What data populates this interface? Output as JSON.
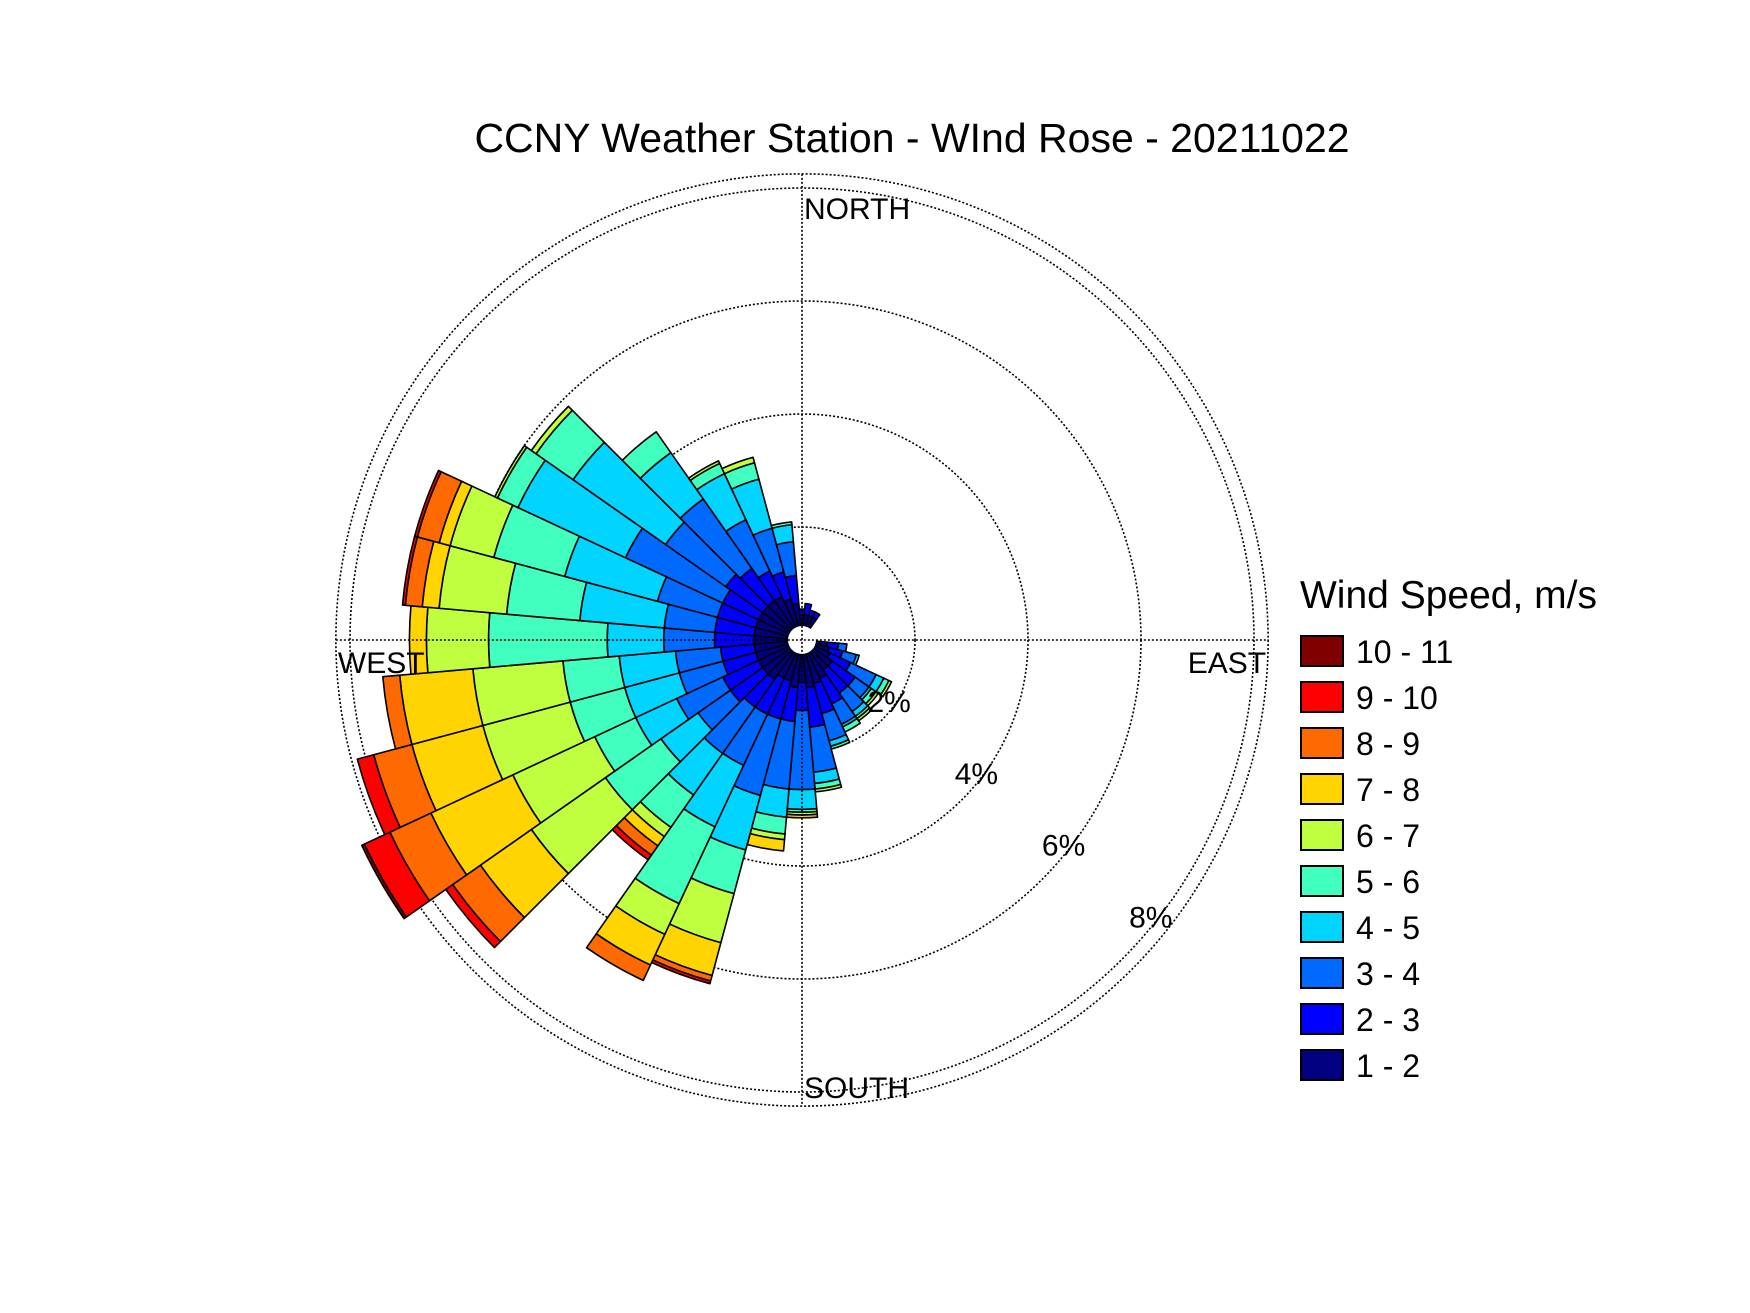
{
  "chart_data": {
    "type": "wind-rose",
    "title": "CCNY Weather Station - WInd Rose - 20211022",
    "directions": [
      "NORTH",
      "EAST",
      "SOUTH",
      "WEST"
    ],
    "radial_ticks": [
      "2%",
      "4%",
      "6%",
      "8%"
    ],
    "radial_tick_values": [
      2,
      4,
      6,
      8
    ],
    "rmax": 8.25,
    "rings": [
      2,
      4,
      6,
      8
    ],
    "grid": true,
    "legend_placement": "right",
    "legend": {
      "title": "Wind Speed, m/s",
      "bins": [
        {
          "label": "10 - 11",
          "color": "#800000"
        },
        {
          "label": "9 - 10",
          "color": "#ff0000"
        },
        {
          "label": "8 - 9",
          "color": "#ff6a00"
        },
        {
          "label": "7 - 8",
          "color": "#ffd400"
        },
        {
          "label": "6 - 7",
          "color": "#bfff40"
        },
        {
          "label": "5 - 6",
          "color": "#40ffbf"
        },
        {
          "label": "4 - 5",
          "color": "#00d4ff"
        },
        {
          "label": "3 - 4",
          "color": "#006aff"
        },
        {
          "label": "2 - 3",
          "color": "#0000ff"
        },
        {
          "label": "1 - 2",
          "color": "#000080"
        }
      ]
    },
    "sector_width_deg": 10,
    "bin_order_inner_to_outer": [
      "1 - 2",
      "2 - 3",
      "3 - 4",
      "4 - 5",
      "5 - 6",
      "6 - 7",
      "7 - 8",
      "8 - 9",
      "9 - 10",
      "10 - 11"
    ],
    "sectors": [
      {
        "dir": 0,
        "cum": [
          0.2,
          0.3
        ]
      },
      {
        "dir": 10,
        "cum": [
          0.2,
          0.4
        ]
      },
      {
        "dir": 20,
        "cum": [
          0.2,
          0.3
        ]
      },
      {
        "dir": 30,
        "cum": [
          0.2,
          0.3
        ]
      },
      {
        "dir": 100,
        "cum": [
          0.2,
          0.4,
          0.55
        ]
      },
      {
        "dir": 110,
        "cum": [
          0.25,
          0.5,
          0.75,
          0.8
        ]
      },
      {
        "dir": 120,
        "cum": [
          0.3,
          0.7,
          1.2,
          1.35,
          1.45,
          1.5
        ]
      },
      {
        "dir": 130,
        "cum": [
          0.4,
          0.9,
          1.2,
          1.25,
          1.35,
          1.4
        ]
      },
      {
        "dir": 140,
        "cum": [
          0.4,
          0.9,
          1.3,
          1.4,
          1.45,
          1.5
        ]
      },
      {
        "dir": 150,
        "cum": [
          0.5,
          1.0,
          1.4,
          1.45,
          1.55
        ]
      },
      {
        "dir": 160,
        "cum": [
          0.55,
          1.1,
          1.6,
          1.7,
          1.75
        ]
      },
      {
        "dir": 170,
        "cum": [
          0.6,
          1.3,
          2.1,
          2.3,
          2.4,
          2.45
        ]
      },
      {
        "dir": 180,
        "cum": [
          0.5,
          1.0,
          2.4,
          2.75,
          2.8,
          2.85,
          2.9
        ]
      },
      {
        "dir": 190,
        "cum": [
          0.6,
          1.2,
          2.4,
          2.9,
          3.2,
          3.3,
          3.5
        ]
      },
      {
        "dir": 200,
        "cum": [
          0.5,
          1.2,
          2.6,
          3.6,
          4.4,
          5.3,
          5.9,
          6.0,
          6.05
        ]
      },
      {
        "dir": 210,
        "cum": [
          0.5,
          1.2,
          2.2,
          3.4,
          4.9,
          5.5,
          6.1,
          6.4
        ]
      },
      {
        "dir": 220,
        "cum": [
          0.6,
          1.2,
          2.2,
          3.1,
          3.8,
          4.0,
          4.2,
          4.4,
          4.5
        ]
      },
      {
        "dir": 230,
        "cum": [
          0.6,
          1.3,
          2.0,
          2.8,
          4.0,
          5.6,
          6.7,
          7.3,
          7.45
        ]
      },
      {
        "dir": 240,
        "cum": [
          0.6,
          1.3,
          2.2,
          3.0,
          3.8,
          5.4,
          7.0,
          7.8,
          8.3,
          8.35
        ]
      },
      {
        "dir": 250,
        "cum": [
          0.6,
          1.2,
          2.0,
          3.0,
          4.0,
          5.6,
          6.9,
          7.6,
          7.9
        ]
      },
      {
        "dir": 260,
        "cum": [
          0.6,
          1.2,
          2.0,
          3.0,
          4.0,
          5.6,
          6.9,
          7.2
        ]
      },
      {
        "dir": 270,
        "cum": [
          0.6,
          1.3,
          2.2,
          3.2,
          5.3,
          6.4,
          6.7
        ]
      },
      {
        "dir": 280,
        "cum": [
          0.6,
          1.3,
          2.2,
          3.7,
          5.0,
          6.2,
          6.5,
          6.8,
          6.85
        ]
      },
      {
        "dir": 290,
        "cum": [
          0.6,
          1.3,
          2.4,
          4.1,
          5.4,
          6.2,
          6.4,
          6.8,
          6.85
        ]
      },
      {
        "dir": 300,
        "cum": [
          0.6,
          1.3,
          3.2,
          5.3,
          5.7,
          5.75
        ]
      },
      {
        "dir": 310,
        "cum": [
          0.6,
          1.4,
          2.7,
          4.7,
          5.5,
          5.6
        ]
      },
      {
        "dir": 320,
        "cum": [
          0.6,
          1.3,
          2.8,
          3.8,
          4.25
        ]
      },
      {
        "dir": 330,
        "cum": [
          0.6,
          1.1,
          2.1,
          3.0,
          3.2,
          3.25
        ]
      },
      {
        "dir": 340,
        "cum": [
          0.5,
          1.0,
          1.8,
          2.7,
          3.0,
          3.1
        ]
      },
      {
        "dir": 350,
        "cum": [
          0.4,
          0.9,
          1.5,
          1.8,
          1.85
        ]
      }
    ]
  }
}
